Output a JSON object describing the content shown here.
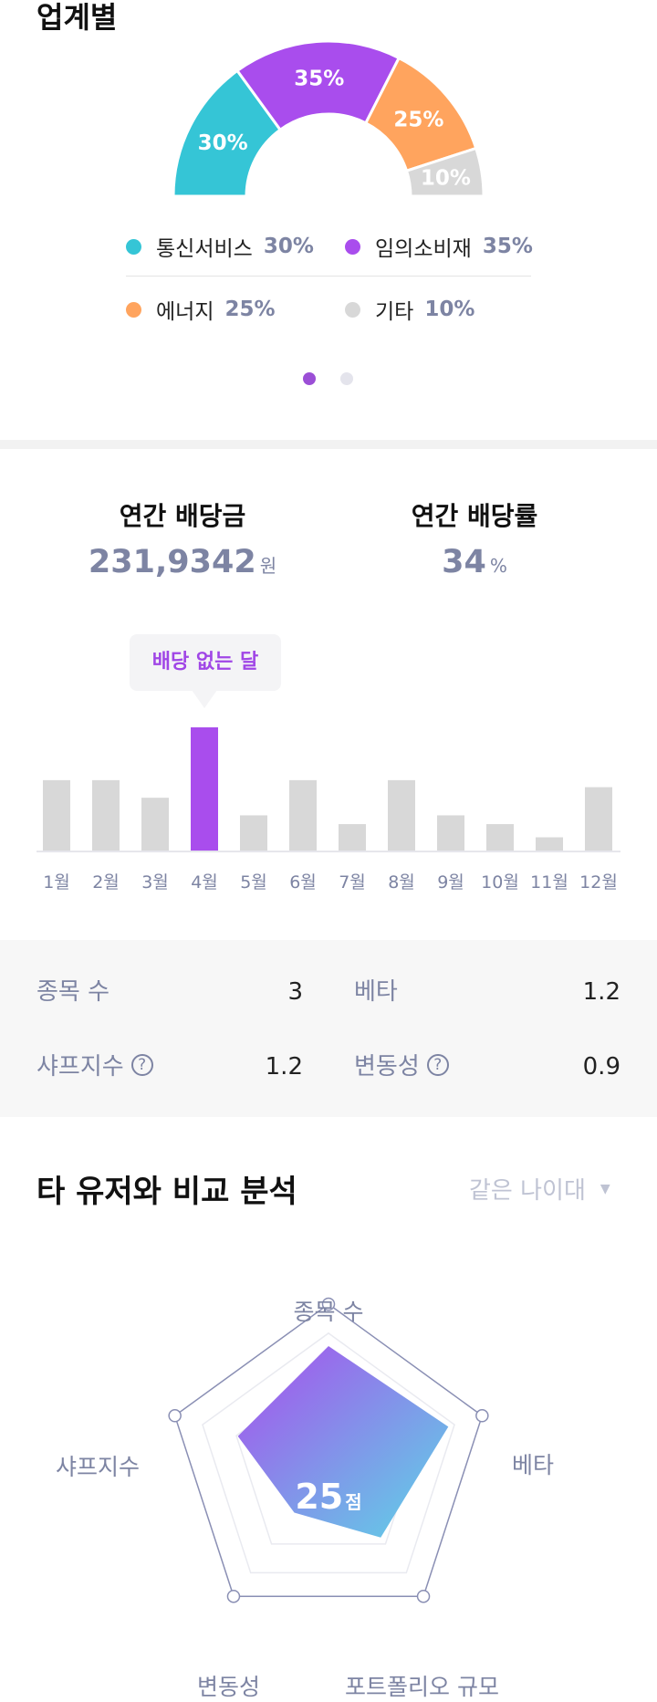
{
  "industry": {
    "title": "업계별",
    "segments": [
      {
        "name": "통신서비스",
        "percent": 30,
        "label": "30%",
        "color": "#35c5d6"
      },
      {
        "name": "임의소비재",
        "percent": 35,
        "label": "35%",
        "color": "#a94ded"
      },
      {
        "name": "에너지",
        "percent": 25,
        "label": "25%",
        "color": "#ffa45e"
      },
      {
        "name": "기타",
        "percent": 10,
        "label": "10%",
        "color": "#d8d8d8"
      }
    ],
    "pager": {
      "count": 2,
      "active": 0
    }
  },
  "dividend": {
    "annual_amount_label": "연간 배당금",
    "annual_amount_value": "231,9342",
    "annual_amount_unit": "원",
    "annual_rate_label": "연간 배당률",
    "annual_rate_value": "34",
    "annual_rate_unit": "%"
  },
  "chart_data": {
    "type": "bar",
    "categories": [
      "1월",
      "2월",
      "3월",
      "4월",
      "5월",
      "6월",
      "7월",
      "8월",
      "9월",
      "10월",
      "11월",
      "12월"
    ],
    "values": [
      8,
      8,
      6,
      14,
      4,
      8,
      3,
      8,
      4,
      3,
      1.5,
      7.2
    ],
    "highlight_index": 3,
    "highlight_color": "#a94ded",
    "bar_color": "#d8d8d8",
    "tooltip": "배당 없는 달"
  },
  "metrics": {
    "items": [
      {
        "label": "종목 수",
        "value": "3",
        "help": false
      },
      {
        "label": "베타",
        "value": "1.2",
        "help": false
      },
      {
        "label": "샤프지수",
        "value": "1.2",
        "help": true
      },
      {
        "label": "변동성",
        "value": "0.9",
        "help": true
      }
    ],
    "help_glyph": "?"
  },
  "compare": {
    "title": "타 유저와 비교 분석",
    "select_value": "같은 나이대",
    "score": "25",
    "score_unit": "점",
    "axes": [
      "종목 수",
      "베타",
      "포트폴리오 규모",
      "변동성",
      "샤프지수"
    ],
    "values": [
      0.74,
      0.78,
      0.55,
      0.36,
      0.59
    ],
    "gradient": [
      "#a94ded",
      "#5dd6e6"
    ]
  }
}
